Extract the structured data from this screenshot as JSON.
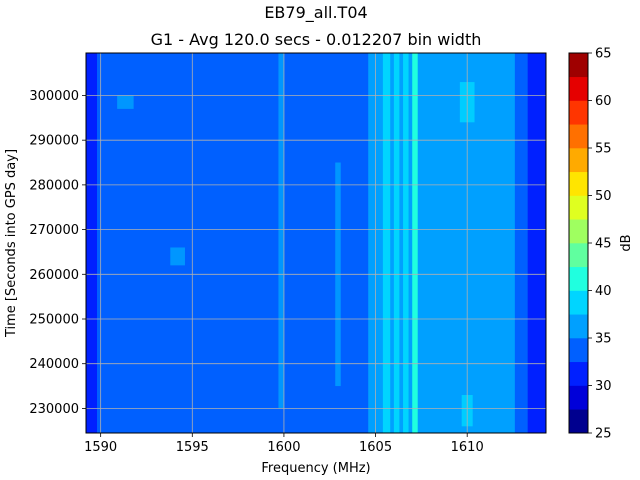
{
  "chart_data": {
    "type": "heatmap",
    "title": "EB79_all.T04",
    "subtitle": "G1 - Avg 120.0 secs - 0.012207 bin width",
    "xlabel": "Frequency (MHz)",
    "ylabel": "Time [Seconds into GPS day]",
    "xlim": [
      1589.2,
      1614.3
    ],
    "ylim": [
      224500,
      309500
    ],
    "x_ticks": [
      1590,
      1595,
      1600,
      1605,
      1610
    ],
    "y_ticks": [
      230000,
      240000,
      250000,
      260000,
      270000,
      280000,
      290000,
      300000
    ],
    "x_tick_labels": [
      "1590",
      "1595",
      "1600",
      "1605",
      "1610"
    ],
    "y_tick_labels": [
      "230000",
      "240000",
      "250000",
      "260000",
      "270000",
      "280000",
      "290000",
      "300000"
    ],
    "grid": true,
    "colorbar": {
      "label": "dB",
      "min": 25,
      "max": 65,
      "ticks": [
        25,
        30,
        35,
        40,
        45,
        50,
        55,
        60,
        65
      ],
      "tick_labels": [
        "25",
        "30",
        "35",
        "40",
        "45",
        "50",
        "55",
        "60",
        "65"
      ],
      "levels": [
        {
          "from": 25.0,
          "to": 27.5,
          "color": "#00008f"
        },
        {
          "from": 27.5,
          "to": 30.0,
          "color": "#0000d9"
        },
        {
          "from": 30.0,
          "to": 32.5,
          "color": "#0020ff"
        },
        {
          "from": 32.5,
          "to": 35.0,
          "color": "#0060ff"
        },
        {
          "from": 35.0,
          "to": 37.5,
          "color": "#00a0ff"
        },
        {
          "from": 37.5,
          "to": 40.0,
          "color": "#00d5ff"
        },
        {
          "from": 40.0,
          "to": 42.5,
          "color": "#20ffdf"
        },
        {
          "from": 42.5,
          "to": 45.0,
          "color": "#60ff9f"
        },
        {
          "from": 45.0,
          "to": 47.5,
          "color": "#9fff60"
        },
        {
          "from": 47.5,
          "to": 50.0,
          "color": "#dfff20"
        },
        {
          "from": 50.0,
          "to": 52.5,
          "color": "#ffe500"
        },
        {
          "from": 52.5,
          "to": 55.0,
          "color": "#ffaa00"
        },
        {
          "from": 55.0,
          "to": 57.5,
          "color": "#ff7000"
        },
        {
          "from": 57.5,
          "to": 60.0,
          "color": "#ff3500"
        },
        {
          "from": 60.0,
          "to": 62.5,
          "color": "#e50000"
        },
        {
          "from": 62.5,
          "to": 65.0,
          "color": "#9f0000"
        }
      ]
    },
    "frequency_bands": [
      {
        "from": 1589.2,
        "to": 1589.8,
        "value": 31
      },
      {
        "from": 1589.8,
        "to": 1604.6,
        "value": 33.5
      },
      {
        "from": 1604.6,
        "to": 1605.4,
        "value": 36
      },
      {
        "from": 1605.4,
        "to": 1605.8,
        "value": 38
      },
      {
        "from": 1605.8,
        "to": 1606.0,
        "value": 36
      },
      {
        "from": 1606.0,
        "to": 1606.3,
        "value": 38
      },
      {
        "from": 1606.3,
        "to": 1606.5,
        "value": 36
      },
      {
        "from": 1606.5,
        "to": 1606.8,
        "value": 38
      },
      {
        "from": 1606.8,
        "to": 1607.0,
        "value": 36
      },
      {
        "from": 1607.0,
        "to": 1607.3,
        "value": 41
      },
      {
        "from": 1607.3,
        "to": 1612.6,
        "value": 36
      },
      {
        "from": 1612.6,
        "to": 1613.3,
        "value": 33.5
      },
      {
        "from": 1613.3,
        "to": 1614.3,
        "value": 31
      }
    ],
    "hotspots": [
      {
        "f_from": 1599.7,
        "f_to": 1600.0,
        "t_from": 230000,
        "t_to": 309500,
        "value": 36
      },
      {
        "f_from": 1602.8,
        "f_to": 1603.1,
        "t_from": 235000,
        "t_to": 285000,
        "value": 36
      },
      {
        "f_from": 1590.9,
        "f_to": 1591.8,
        "t_from": 297000,
        "t_to": 300000,
        "value": 36
      },
      {
        "f_from": 1593.8,
        "f_to": 1594.6,
        "t_from": 262000,
        "t_to": 266000,
        "value": 36
      },
      {
        "f_from": 1609.6,
        "f_to": 1610.4,
        "t_from": 294000,
        "t_to": 303000,
        "value": 38
      },
      {
        "f_from": 1609.7,
        "f_to": 1610.3,
        "t_from": 226000,
        "t_to": 233000,
        "value": 38
      }
    ]
  }
}
